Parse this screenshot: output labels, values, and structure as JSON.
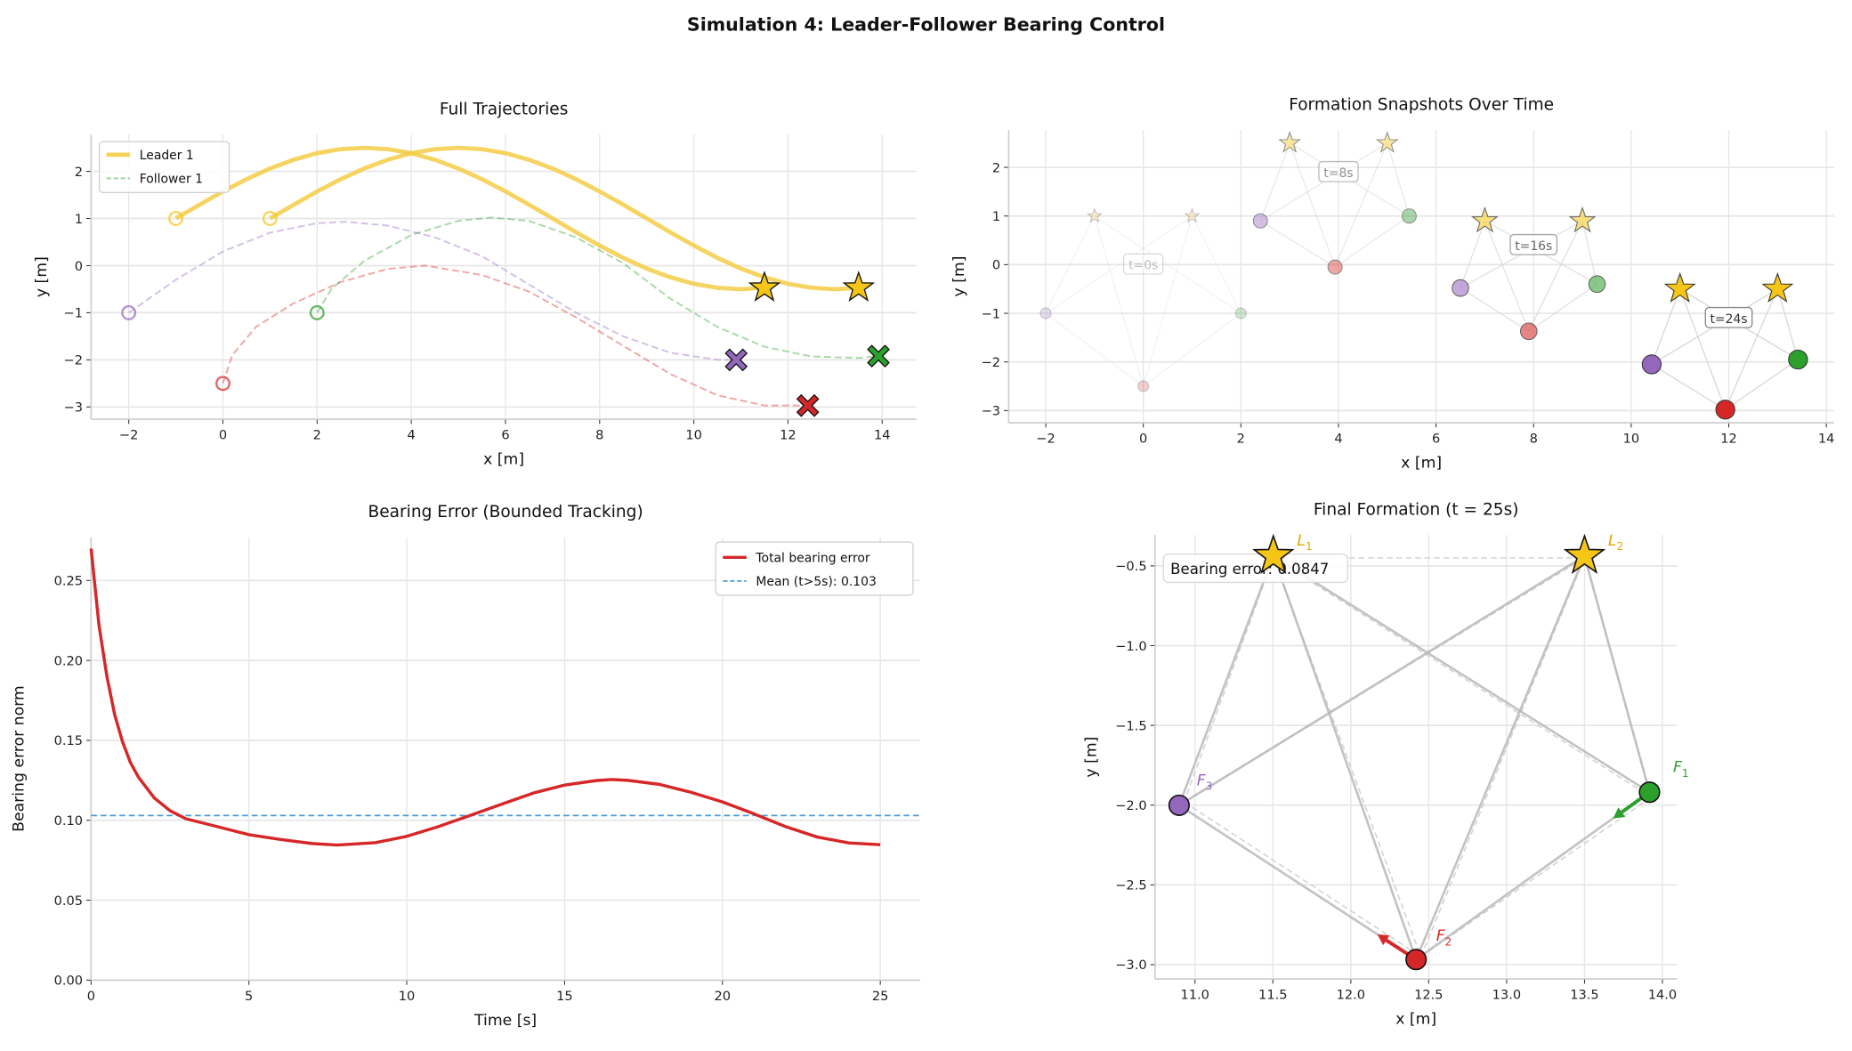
{
  "figure": {
    "suptitle": "Simulation 4: Leader-Follower Bearing Control"
  },
  "colors": {
    "leader": "#f5c518",
    "follower_1": "#2ca02c",
    "follower_2": "#d62728",
    "follower_3": "#9467bd",
    "error_line": "#d62728",
    "mean_line": "#4c9bd6",
    "edge": "#b8b8b8",
    "grid": "#e6e6e6"
  },
  "chart_data": [
    {
      "type": "line",
      "title": "Full Trajectories",
      "xlabel": "x [m]",
      "ylabel": "y [m]",
      "xlim": [
        -2.8,
        14.73
      ],
      "ylim": [
        -3.26,
        2.78
      ],
      "grid": true,
      "xticks": [
        -2,
        0,
        2,
        4,
        6,
        8,
        10,
        12,
        14
      ],
      "xtick_labels": [
        "−2",
        "0",
        "2",
        "4",
        "6",
        "8",
        "10",
        "12",
        "14"
      ],
      "yticks": [
        -3,
        -2,
        -1,
        0,
        1,
        2
      ],
      "ytick_labels": [
        "−3",
        "−2",
        "−1",
        "0",
        "1",
        "2"
      ],
      "legend": {
        "position": "top-left",
        "entries": [
          {
            "label": "Leader 1",
            "series": 0
          },
          {
            "label": "Follower 1",
            "series": 2
          }
        ]
      },
      "series": [
        {
          "name": "Leader 1",
          "role": "leader",
          "color": "#f5c518",
          "style": "solid",
          "start_marker": "circle",
          "end_marker": "star",
          "points": [
            [
              -1,
              1
            ],
            [
              -0.5,
              1.29
            ],
            [
              0,
              1.574
            ],
            [
              0.5,
              1.833
            ],
            [
              1,
              2.061
            ],
            [
              1.5,
              2.247
            ],
            [
              2,
              2.386
            ],
            [
              2.5,
              2.471
            ],
            [
              3,
              2.5
            ],
            [
              3.5,
              2.471
            ],
            [
              4,
              2.386
            ],
            [
              4.5,
              2.247
            ],
            [
              5,
              2.061
            ],
            [
              5.5,
              1.833
            ],
            [
              6,
              1.574
            ],
            [
              6.5,
              1.293
            ],
            [
              7,
              1
            ],
            [
              7.5,
              0.707
            ],
            [
              8,
              0.426
            ],
            [
              8.5,
              0.167
            ],
            [
              9,
              -0.061
            ],
            [
              9.5,
              -0.247
            ],
            [
              10,
              -0.386
            ],
            [
              10.5,
              -0.471
            ],
            [
              11,
              -0.5
            ],
            [
              11.5,
              -0.471
            ]
          ]
        },
        {
          "role": "leader",
          "color": "#f5c518",
          "style": "solid",
          "start_marker": "circle",
          "end_marker": "star",
          "points": [
            [
              1,
              1
            ],
            [
              1.5,
              1.29
            ],
            [
              2,
              1.574
            ],
            [
              2.5,
              1.833
            ],
            [
              3,
              2.061
            ],
            [
              3.5,
              2.247
            ],
            [
              4,
              2.386
            ],
            [
              4.5,
              2.471
            ],
            [
              5,
              2.5
            ],
            [
              5.5,
              2.471
            ],
            [
              6,
              2.386
            ],
            [
              6.5,
              2.247
            ],
            [
              7,
              2.061
            ],
            [
              7.5,
              1.833
            ],
            [
              8,
              1.574
            ],
            [
              8.5,
              1.293
            ],
            [
              9,
              1
            ],
            [
              9.5,
              0.707
            ],
            [
              10,
              0.426
            ],
            [
              10.5,
              0.167
            ],
            [
              11,
              -0.061
            ],
            [
              11.5,
              -0.247
            ],
            [
              12,
              -0.386
            ],
            [
              12.5,
              -0.471
            ],
            [
              13,
              -0.5
            ],
            [
              13.5,
              -0.471
            ]
          ]
        },
        {
          "name": "Follower 1",
          "role": "follower",
          "color": "#2ca02c",
          "style": "dashed",
          "start_marker": "circle",
          "end_marker": "x",
          "points": [
            [
              2,
              -1
            ],
            [
              2.3,
              -0.5
            ],
            [
              3,
              0.1
            ],
            [
              4,
              0.65
            ],
            [
              5,
              0.95
            ],
            [
              5.7,
              1.02
            ],
            [
              6.5,
              0.95
            ],
            [
              7.5,
              0.6
            ],
            [
              8.5,
              0.05
            ],
            [
              9.5,
              -0.7
            ],
            [
              10.5,
              -1.3
            ],
            [
              11.5,
              -1.72
            ],
            [
              12.5,
              -1.93
            ],
            [
              13.5,
              -1.96
            ],
            [
              13.92,
              -1.92
            ]
          ]
        },
        {
          "role": "follower",
          "color": "#d62728",
          "style": "dashed",
          "start_marker": "circle",
          "end_marker": "x",
          "points": [
            [
              0,
              -2.5
            ],
            [
              0.2,
              -1.9
            ],
            [
              0.7,
              -1.3
            ],
            [
              1.5,
              -0.8
            ],
            [
              2.5,
              -0.35
            ],
            [
              3.5,
              -0.07
            ],
            [
              4.3,
              0
            ],
            [
              5.5,
              -0.2
            ],
            [
              6.5,
              -0.55
            ],
            [
              7.5,
              -1.1
            ],
            [
              8.5,
              -1.7
            ],
            [
              9.5,
              -2.3
            ],
            [
              10.5,
              -2.75
            ],
            [
              11.5,
              -2.97
            ],
            [
              12.42,
              -2.97
            ]
          ]
        },
        {
          "role": "follower",
          "color": "#9467bd",
          "style": "dashed",
          "start_marker": "circle",
          "end_marker": "x",
          "points": [
            [
              -2,
              -1
            ],
            [
              -1,
              -0.3
            ],
            [
              0,
              0.3
            ],
            [
              1,
              0.7
            ],
            [
              2,
              0.9
            ],
            [
              2.6,
              0.93
            ],
            [
              3.5,
              0.85
            ],
            [
              4.5,
              0.6
            ],
            [
              5.5,
              0.2
            ],
            [
              6.5,
              -0.4
            ],
            [
              7.5,
              -1.0
            ],
            [
              8.5,
              -1.5
            ],
            [
              9.5,
              -1.85
            ],
            [
              10.5,
              -2.0
            ],
            [
              10.9,
              -2.0
            ]
          ]
        }
      ]
    },
    {
      "type": "scatter",
      "title": "Formation Snapshots Over Time",
      "xlabel": "x [m]",
      "ylabel": "y [m]",
      "xlim": [
        -2.76,
        14.16
      ],
      "ylim": [
        -3.25,
        2.77
      ],
      "grid": true,
      "xticks": [
        -2,
        0,
        2,
        4,
        6,
        8,
        10,
        12,
        14
      ],
      "xtick_labels": [
        "−2",
        "0",
        "2",
        "4",
        "6",
        "8",
        "10",
        "12",
        "14"
      ],
      "yticks": [
        -3,
        -2,
        -1,
        0,
        1,
        2
      ],
      "ytick_labels": [
        "−3",
        "−2",
        "−1",
        "0",
        "1",
        "2"
      ],
      "snapshots": [
        {
          "label": "t=0s",
          "leaders": [
            [
              -1,
              1
            ],
            [
              1,
              1
            ]
          ],
          "F1": [
            2,
            -1
          ],
          "F2": [
            0,
            -2.5
          ],
          "F3": [
            -2,
            -1
          ]
        },
        {
          "label": "t=8s",
          "leaders": [
            [
              3,
              2.5
            ],
            [
              5,
              2.5
            ]
          ],
          "F1": [
            5.45,
            1.0
          ],
          "F2": [
            3.93,
            -0.05
          ],
          "F3": [
            2.4,
            0.9
          ]
        },
        {
          "label": "t=16s",
          "leaders": [
            [
              7,
              0.9
            ],
            [
              9,
              0.9
            ]
          ],
          "F1": [
            9.3,
            -0.4
          ],
          "F2": [
            7.9,
            -1.37
          ],
          "F3": [
            6.5,
            -0.48
          ]
        },
        {
          "label": "t=24s",
          "leaders": [
            [
              11,
              -0.5
            ],
            [
              13,
              -0.5
            ]
          ],
          "F1": [
            13.42,
            -1.95
          ],
          "F2": [
            11.93,
            -2.98
          ],
          "F3": [
            10.42,
            -2.05
          ]
        }
      ]
    },
    {
      "type": "line",
      "title": "Bearing Error (Bounded Tracking)",
      "xlabel": "Time [s]",
      "ylabel": "Bearing error norm",
      "xlim": [
        0,
        26.26
      ],
      "ylim": [
        0,
        0.277
      ],
      "grid": true,
      "xticks": [
        0,
        5,
        10,
        15,
        20,
        25
      ],
      "xtick_labels": [
        "0",
        "5",
        "10",
        "15",
        "20",
        "25"
      ],
      "yticks": [
        0,
        0.05,
        0.1,
        0.15,
        0.2,
        0.25
      ],
      "ytick_labels": [
        "0.00",
        "0.05",
        "0.10",
        "0.15",
        "0.20",
        "0.25"
      ],
      "legend": {
        "position": "top-right",
        "entries": [
          {
            "label": "Total bearing error"
          },
          {
            "label": "Mean (t>5s): 0.103"
          }
        ]
      },
      "series": [
        {
          "name": "Total bearing error",
          "color": "#d62728",
          "style": "solid",
          "x": [
            0,
            0.25,
            0.5,
            0.75,
            1,
            1.25,
            1.5,
            2,
            2.5,
            3,
            4,
            5,
            6,
            7,
            7.8,
            9,
            10,
            11,
            12,
            13,
            14,
            15,
            16,
            16.5,
            17,
            18,
            19,
            20,
            21,
            22,
            23,
            24,
            25
          ],
          "y": [
            0.27,
            0.222,
            0.19,
            0.166,
            0.149,
            0.136,
            0.127,
            0.114,
            0.106,
            0.101,
            0.096,
            0.091,
            0.088,
            0.0855,
            0.0845,
            0.086,
            0.09,
            0.096,
            0.103,
            0.11,
            0.117,
            0.122,
            0.1248,
            0.1255,
            0.125,
            0.1225,
            0.1175,
            0.1115,
            0.104,
            0.096,
            0.0895,
            0.0858,
            0.0847
          ]
        }
      ],
      "hlines": [
        {
          "name": "Mean (t>5s): 0.103",
          "y": 0.103,
          "color": "#4c9bd6",
          "style": "dashed"
        }
      ]
    },
    {
      "type": "scatter",
      "title": "Final Formation (t = 25s)",
      "xlabel": "x [m]",
      "ylabel": "y [m]",
      "xlim": [
        10.744,
        14.094
      ],
      "ylim": [
        -3.09,
        -0.306
      ],
      "grid": true,
      "xticks": [
        11.0,
        11.5,
        12.0,
        12.5,
        13.0,
        13.5,
        14.0
      ],
      "xtick_labels": [
        "11.0",
        "11.5",
        "12.0",
        "12.5",
        "13.0",
        "13.5",
        "14.0"
      ],
      "yticks": [
        -3.0,
        -2.5,
        -2.0,
        -1.5,
        -1.0,
        -0.5
      ],
      "ytick_labels": [
        "−3.0",
        "−2.5",
        "−2.0",
        "−1.5",
        "−1.0",
        "−0.5"
      ],
      "annotation": "Bearing error: 0.0847",
      "agents": [
        {
          "id": "L1",
          "letter": "L",
          "sub": "1",
          "kind": "leader",
          "pos": [
            11.503,
            -0.438
          ],
          "desired": [
            11.503,
            -0.45
          ],
          "color": "#f5c518",
          "label_color": "#e0a800"
        },
        {
          "id": "L2",
          "letter": "L",
          "sub": "2",
          "kind": "leader",
          "pos": [
            13.5,
            -0.438
          ],
          "desired": [
            13.5,
            -0.45
          ],
          "color": "#f5c518",
          "label_color": "#e0a800"
        },
        {
          "id": "F1",
          "letter": "F",
          "sub": "1",
          "kind": "follower",
          "pos": [
            13.917,
            -1.919
          ],
          "desired": [
            13.93,
            -1.95
          ],
          "color": "#2ca02c",
          "label_color": "#2ca02c",
          "velocity_tip": [
            13.684,
            -2.083
          ]
        },
        {
          "id": "F2",
          "letter": "F",
          "sub": "2",
          "kind": "follower",
          "pos": [
            12.419,
            -2.968
          ],
          "desired": [
            12.45,
            -2.95
          ],
          "color": "#d62728",
          "label_color": "#d62728",
          "velocity_tip": [
            12.171,
            -2.811
          ]
        },
        {
          "id": "F3",
          "letter": "F",
          "sub": "3",
          "kind": "follower",
          "pos": [
            10.898,
            -2.001
          ],
          "desired": [
            10.93,
            -1.98
          ],
          "color": "#9467bd",
          "label_color": "#9467bd"
        }
      ],
      "edges": [
        [
          "L1",
          "F3"
        ],
        [
          "L1",
          "F2"
        ],
        [
          "L1",
          "F1"
        ],
        [
          "L2",
          "F3"
        ],
        [
          "L2",
          "F2"
        ],
        [
          "L2",
          "F1"
        ],
        [
          "F3",
          "F2"
        ],
        [
          "F2",
          "F1"
        ]
      ],
      "desired_edges": [
        [
          "L1",
          "L2"
        ],
        [
          "L1",
          "F3"
        ],
        [
          "L1",
          "F2"
        ],
        [
          "L1",
          "F1"
        ],
        [
          "L2",
          "F3"
        ],
        [
          "L2",
          "F2"
        ],
        [
          "L2",
          "F1"
        ],
        [
          "F3",
          "F2"
        ],
        [
          "F2",
          "F1"
        ]
      ]
    }
  ]
}
